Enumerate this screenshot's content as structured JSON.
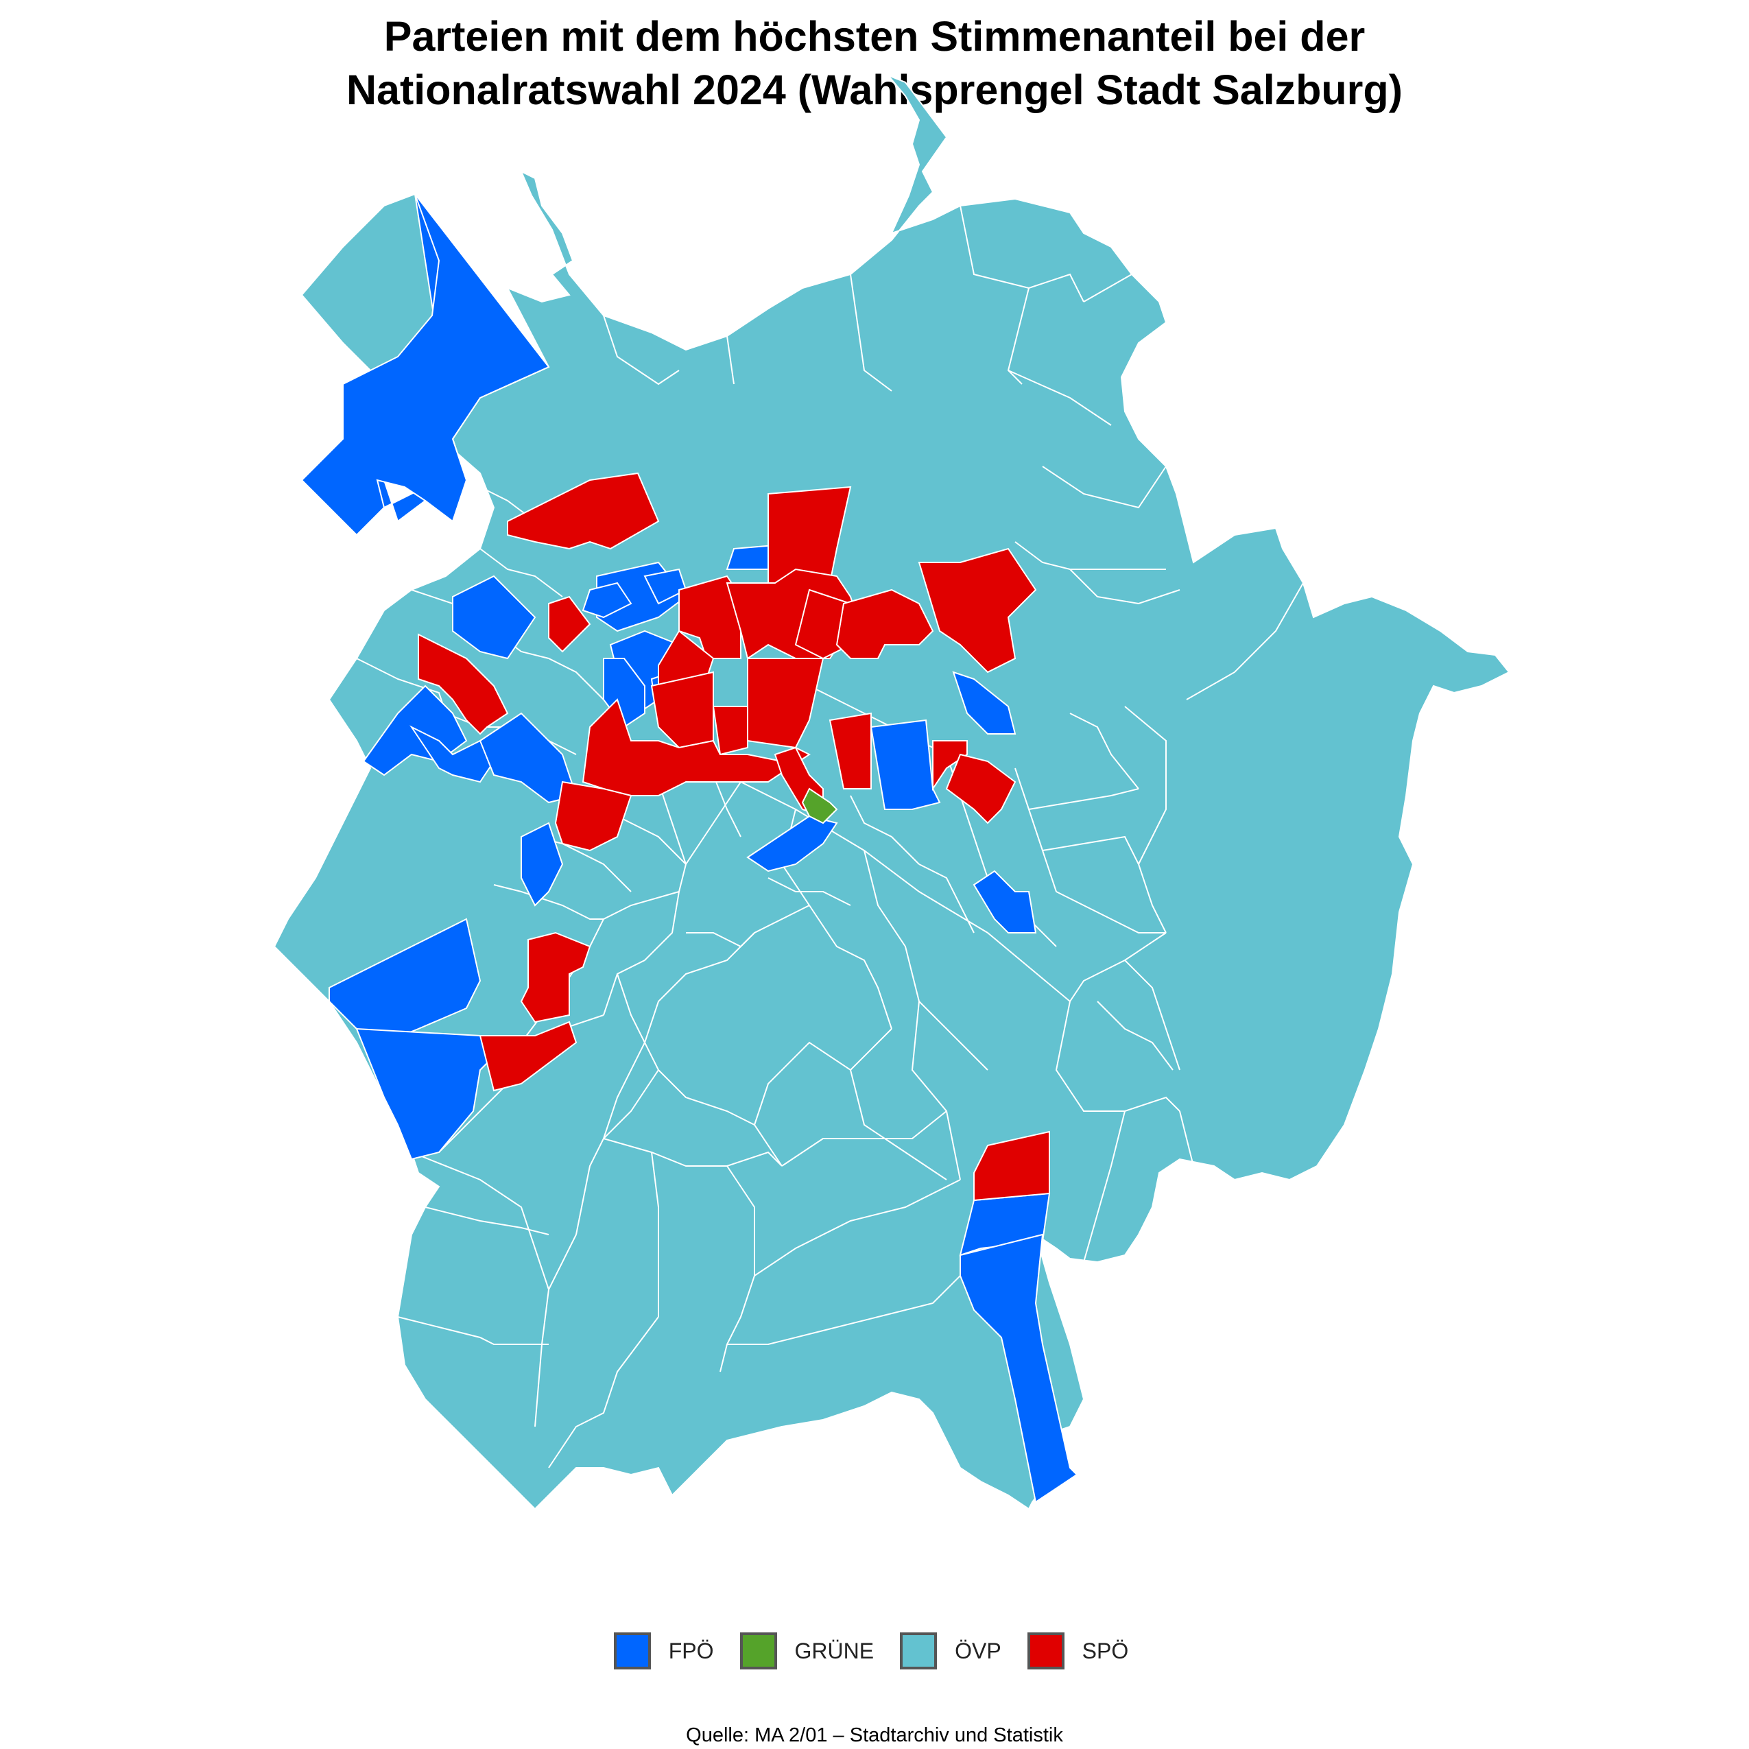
{
  "title_line1": "Parteien mit dem höchsten Stimmenanteil bei der",
  "title_line2": "Nationalratswahl 2024 (Wahlsprengel Stadt Salzburg)",
  "source": "Quelle: MA 2/01 – Stadtarchiv und Statistik",
  "colors": {
    "FPO": "#0066FF",
    "GRUENE": "#55A32A",
    "OEVP": "#63C2D0",
    "SPOE": "#E00000",
    "border": "#FFFFFF"
  },
  "legend": [
    {
      "key": "FPO",
      "label": "FPÖ"
    },
    {
      "key": "GRUENE",
      "label": "GRÜNE"
    },
    {
      "key": "OEVP",
      "label": "ÖVP"
    },
    {
      "key": "SPOE",
      "label": "SPÖ"
    }
  ]
}
